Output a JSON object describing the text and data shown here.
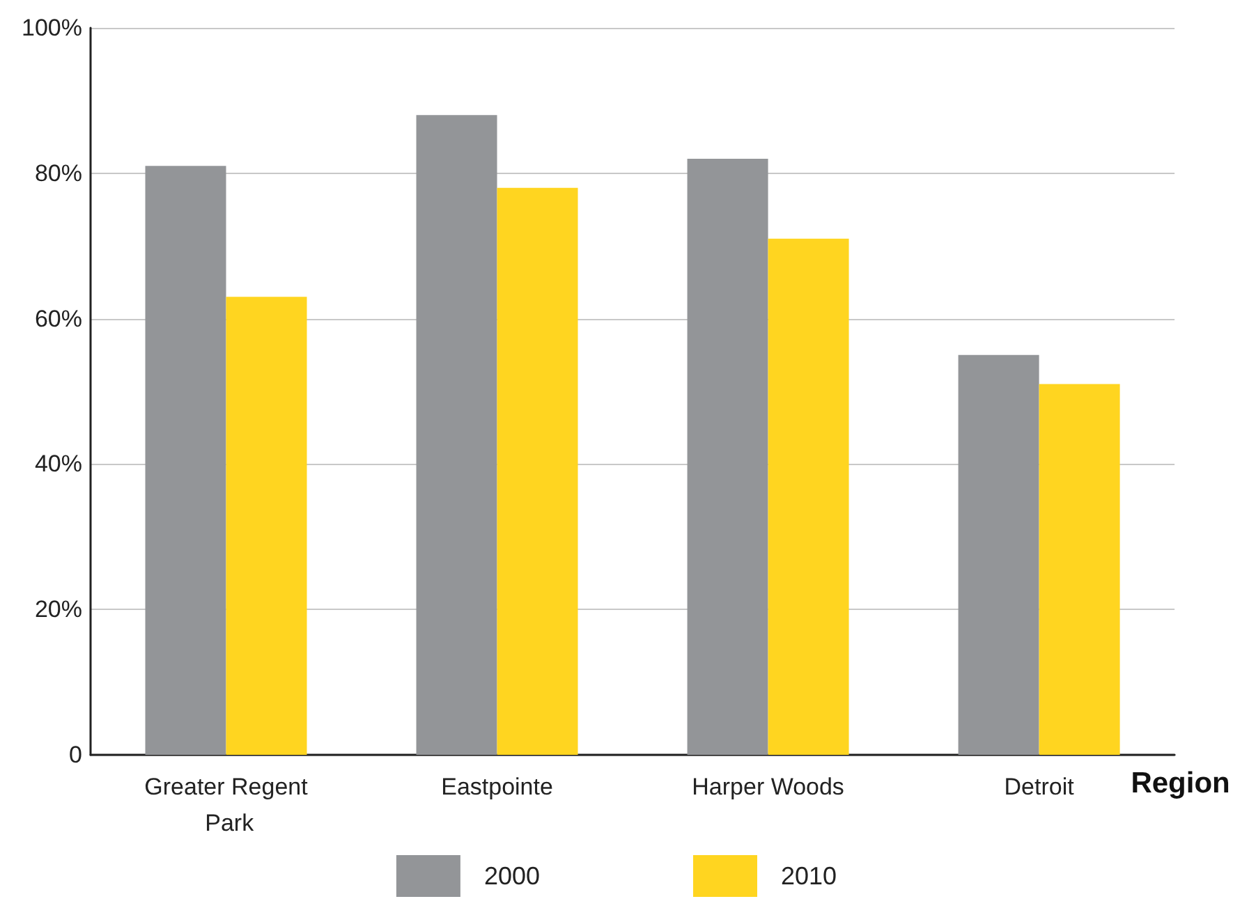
{
  "chart_data": {
    "type": "bar",
    "xlabel": "Region",
    "categories": [
      "Greater Regent Park",
      "Eastpointe",
      "Harper Woods",
      "Detroit"
    ],
    "series": [
      {
        "name": "2000",
        "color": "#939598",
        "values": [
          81,
          88,
          82,
          55
        ]
      },
      {
        "name": "2010",
        "color": "#ffd520",
        "values": [
          63,
          78,
          71,
          51
        ]
      }
    ],
    "ylim": [
      0,
      100
    ],
    "yticks": [
      0,
      {
        "value": 20,
        "label": "20%"
      },
      {
        "value": 40,
        "label": "40%"
      },
      {
        "value": 60,
        "label": "60%"
      },
      {
        "value": 80,
        "label": "80%"
      },
      {
        "value": 100,
        "label": "100%"
      }
    ],
    "grid": "y",
    "legend": "bottom"
  }
}
